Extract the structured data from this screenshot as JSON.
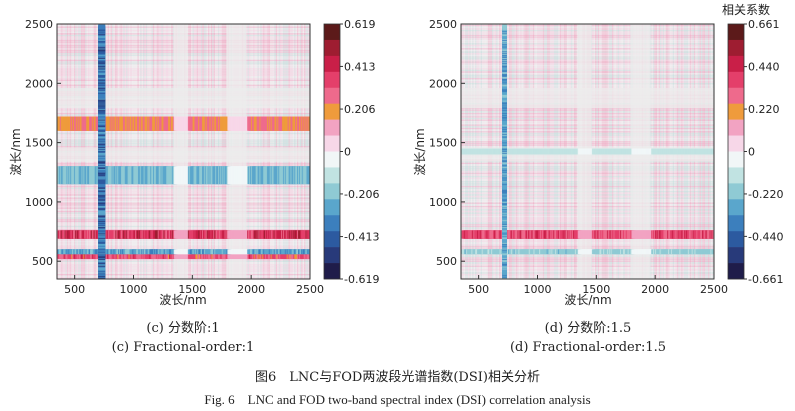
{
  "figure": {
    "caption_cn": "图6　LNC与FOD两波段光谱指数(DSI)相关分析",
    "caption_en": "Fig. 6　LNC and FOD two-band spectral index (DSI) correlation analysis"
  },
  "colormap": [
    "#1f1c4a",
    "#283a7a",
    "#2c5aa0",
    "#3c7fbd",
    "#5aa6cc",
    "#8fcad4",
    "#c1e3e2",
    "#f1f6f7",
    "#f7d7e8",
    "#f2a3c2",
    "#ef9b3c",
    "#ee6a8c",
    "#e43f6a",
    "#c91f48",
    "#9e1d31",
    "#5c1a1a"
  ],
  "chart_data": [
    {
      "type": "heatmap",
      "panel_label_cn": "(c) 分数阶:1",
      "panel_label_en": "(c) Fractional-order:1",
      "xlabel": "波长/nm",
      "ylabel": "波长/nm",
      "xlim": [
        350,
        2500
      ],
      "ylim": [
        350,
        2500
      ],
      "x_ticks": [
        "500",
        "1000",
        "1500",
        "2000",
        "2500"
      ],
      "y_ticks": [
        "500",
        "1000",
        "1500",
        "2000",
        "2500"
      ],
      "colorbar_title": "",
      "colorbar_ticks": [
        "0.619",
        "0.413",
        "0.206",
        "0",
        "-0.206",
        "-0.413",
        "-0.619"
      ],
      "vmin": -0.619,
      "vmax": 0.619,
      "strong_bands": [
        {
          "from": 690,
          "to": 760,
          "value": 0.5
        },
        {
          "from": 520,
          "to": 560,
          "value": 0.4
        },
        {
          "from": 560,
          "to": 600,
          "value": -0.35
        },
        {
          "from": 1150,
          "to": 1300,
          "value": -0.3
        },
        {
          "from": 1600,
          "to": 1720,
          "value": 0.3
        }
      ],
      "cross_band": {
        "from": 700,
        "to": 760,
        "value": -0.5
      }
    },
    {
      "type": "heatmap",
      "panel_label_cn": "(d) 分数阶:1.5",
      "panel_label_en": "(d) Fractional-order:1.5",
      "xlabel": "波长/nm",
      "ylabel": "波长/nm",
      "xlim": [
        350,
        2500
      ],
      "ylim": [
        350,
        2500
      ],
      "x_ticks": [
        "500",
        "1000",
        "1500",
        "2000",
        "2500"
      ],
      "y_ticks": [
        "500",
        "1000",
        "1500",
        "2000",
        "2500"
      ],
      "colorbar_title": "相关系数",
      "colorbar_ticks": [
        "0.661",
        "0.440",
        "0.220",
        "0",
        "-0.220",
        "-0.440",
        "-0.661"
      ],
      "vmin": -0.661,
      "vmax": 0.661,
      "strong_bands": [
        {
          "from": 690,
          "to": 760,
          "value": 0.45
        },
        {
          "from": 560,
          "to": 600,
          "value": -0.25
        },
        {
          "from": 1400,
          "to": 1450,
          "value": -0.15
        }
      ],
      "cross_band": {
        "from": 700,
        "to": 740,
        "value": -0.4
      }
    }
  ]
}
